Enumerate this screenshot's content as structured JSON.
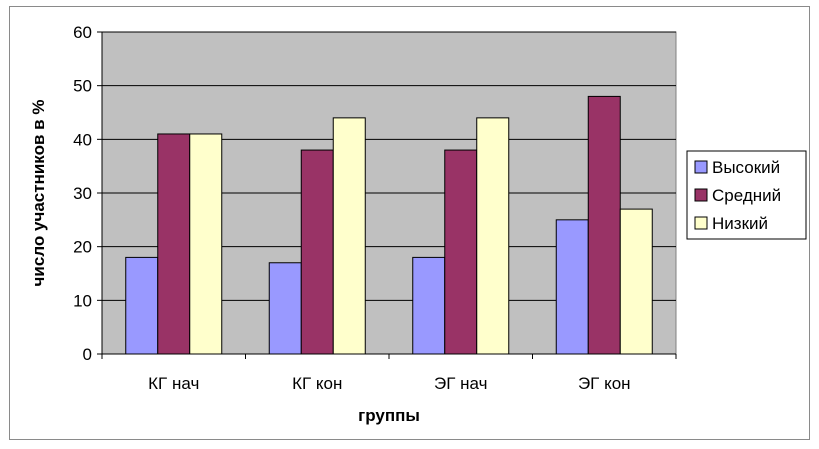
{
  "chart_data": {
    "type": "bar",
    "categories": [
      "КГ нач",
      "КГ кон",
      "ЭГ нач",
      "ЭГ кон"
    ],
    "series": [
      {
        "name": "Высокий",
        "values": [
          18,
          17,
          18,
          25
        ],
        "color": "#9999ff"
      },
      {
        "name": "Средний",
        "values": [
          41,
          38,
          38,
          48
        ],
        "color": "#993366"
      },
      {
        "name": "Низкий",
        "values": [
          41,
          44,
          44,
          27
        ],
        "color": "#ffffcc"
      }
    ],
    "xlabel": "группы",
    "ylabel": "число участников в %",
    "ylim": [
      0,
      60
    ],
    "yticks": [
      0,
      10,
      20,
      30,
      40,
      50,
      60
    ],
    "grid": true,
    "plot_background": "#c0c0c0",
    "legend_position": "right"
  }
}
